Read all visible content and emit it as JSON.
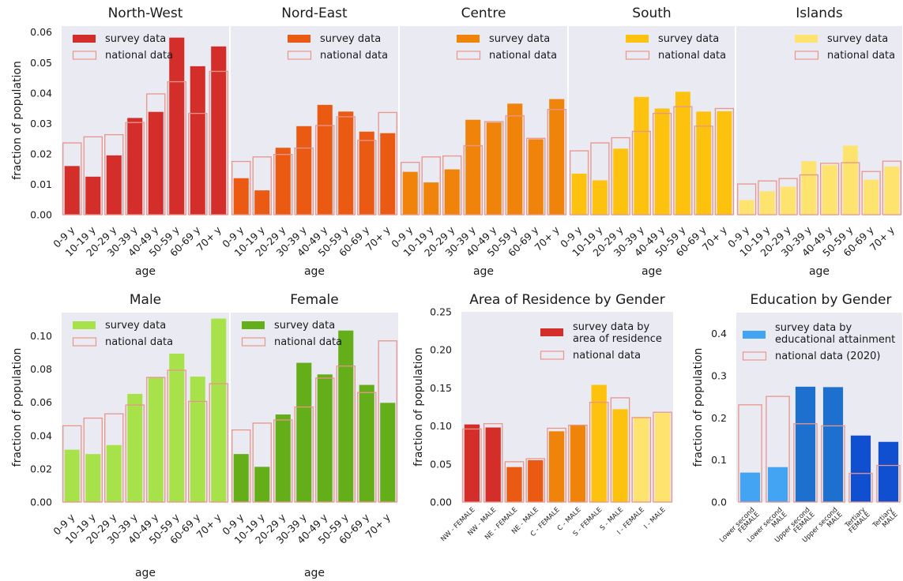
{
  "colors": {
    "panel_bg": "#EAEAF2",
    "national_edge": "#E8958C",
    "north_west": "#D42E2A",
    "nord_east": "#EB5A13",
    "centre": "#F0830A",
    "south": "#FCC20E",
    "islands": "#FEE46E",
    "male": "#A8E24A",
    "female": "#63AE19",
    "edu_light": "#44A4F4",
    "edu_mid": "#1E70CE",
    "edu_dark": "#0F4FD0"
  },
  "labels": {
    "age": "age",
    "fraction": "fraction of population",
    "survey": "survey data",
    "national": "national data",
    "survey_area": "survey data by area of residence",
    "survey_area_l1": "survey data by",
    "survey_area_l2": "area of residence",
    "survey_edu_l1": "survey data by",
    "survey_edu_l2": "educational attainment",
    "national_2020": "national data (2020)"
  },
  "chart_data": [
    {
      "type": "bar",
      "title": "North-West",
      "categories": [
        "0-9 y",
        "10-19 y",
        "20-29 y",
        "30-39 y",
        "40-49 y",
        "50-59 y",
        "60-69 y",
        "70+ y"
      ],
      "series": [
        {
          "name": "survey data",
          "values": [
            0.016,
            0.0125,
            0.0195,
            0.0318,
            0.0338,
            0.0582,
            0.0488,
            0.0553
          ]
        },
        {
          "name": "national data",
          "values": [
            0.0236,
            0.0256,
            0.0263,
            0.0303,
            0.0397,
            0.0437,
            0.0333,
            0.0471
          ]
        }
      ],
      "xlabel": "age",
      "ylabel": "fraction of population",
      "ylim": [
        0,
        0.062
      ],
      "yticks": [
        "0.00",
        "0.01",
        "0.02",
        "0.03",
        "0.04",
        "0.05",
        "0.06"
      ]
    },
    {
      "type": "bar",
      "title": "Nord-East",
      "categories": [
        "0-9 y",
        "10-19 y",
        "20-29 y",
        "30-39 y",
        "40-49 y",
        "50-59 y",
        "60-69 y",
        "70+ y"
      ],
      "series": [
        {
          "name": "survey data",
          "values": [
            0.012,
            0.008,
            0.022,
            0.0291,
            0.0361,
            0.0339,
            0.0273,
            0.0268
          ]
        },
        {
          "name": "national data",
          "values": [
            0.0175,
            0.019,
            0.0198,
            0.0219,
            0.0293,
            0.0322,
            0.0244,
            0.0336
          ]
        }
      ],
      "xlabel": "age",
      "ylim": [
        0,
        0.062
      ]
    },
    {
      "type": "bar",
      "title": "Centre",
      "categories": [
        "0-9 y",
        "10-19 y",
        "20-29 y",
        "30-39 y",
        "40-49 y",
        "50-59 y",
        "60-69 y",
        "70+ y"
      ],
      "series": [
        {
          "name": "survey data",
          "values": [
            0.0141,
            0.0106,
            0.0149,
            0.0312,
            0.0303,
            0.0365,
            0.0248,
            0.038
          ]
        },
        {
          "name": "national data",
          "values": [
            0.0172,
            0.019,
            0.0193,
            0.0227,
            0.0306,
            0.0325,
            0.0251,
            0.0346
          ]
        }
      ],
      "xlabel": "age",
      "ylim": [
        0,
        0.062
      ]
    },
    {
      "type": "bar",
      "title": "South",
      "categories": [
        "0-9 y",
        "10-19 y",
        "20-29 y",
        "30-39 y",
        "40-49 y",
        "50-59 y",
        "60-69 y",
        "70+ y"
      ],
      "series": [
        {
          "name": "survey data",
          "values": [
            0.0135,
            0.0113,
            0.0217,
            0.0387,
            0.0349,
            0.0404,
            0.0339,
            0.034
          ]
        },
        {
          "name": "national data",
          "values": [
            0.021,
            0.0236,
            0.0253,
            0.0274,
            0.0333,
            0.0355,
            0.0291,
            0.0349
          ]
        }
      ],
      "xlabel": "age",
      "ylim": [
        0,
        0.062
      ]
    },
    {
      "type": "bar",
      "title": "Islands",
      "categories": [
        "0-9 y",
        "10-19 y",
        "20-29 y",
        "30-39 y",
        "40-49 y",
        "50-59 y",
        "60-69 y",
        "70+ y"
      ],
      "series": [
        {
          "name": "survey data",
          "values": [
            0.0048,
            0.0077,
            0.0092,
            0.0176,
            0.0163,
            0.0227,
            0.0115,
            0.0158
          ]
        },
        {
          "name": "national data",
          "values": [
            0.0101,
            0.0111,
            0.0119,
            0.0131,
            0.0169,
            0.0171,
            0.0142,
            0.0176
          ]
        }
      ],
      "xlabel": "age",
      "ylim": [
        0,
        0.062
      ]
    },
    {
      "type": "bar",
      "title": "Male",
      "categories": [
        "0-9 y",
        "10-19 y",
        "20-29 y",
        "30-39 y",
        "40-49 y",
        "50-59 y",
        "60-69 y",
        "70+ y"
      ],
      "series": [
        {
          "name": "survey data",
          "values": [
            0.0315,
            0.0289,
            0.0343,
            0.0651,
            0.0748,
            0.0893,
            0.0755,
            0.1104
          ]
        },
        {
          "name": "national data",
          "values": [
            0.0459,
            0.0505,
            0.0531,
            0.0584,
            0.075,
            0.0793,
            0.0606,
            0.0712
          ]
        }
      ],
      "xlabel": "age",
      "ylabel": "fraction of population",
      "ylim": [
        0,
        0.114
      ],
      "yticks": [
        "0.00",
        "0.02",
        "0.04",
        "0.06",
        "0.08",
        "0.10"
      ]
    },
    {
      "type": "bar",
      "title": "Female",
      "categories": [
        "0-9 y",
        "10-19 y",
        "20-29 y",
        "30-39 y",
        "40-49 y",
        "50-59 y",
        "60-69 y",
        "70+ y"
      ],
      "series": [
        {
          "name": "survey data",
          "values": [
            0.0289,
            0.0212,
            0.0527,
            0.0838,
            0.0768,
            0.1032,
            0.0705,
            0.0597
          ]
        },
        {
          "name": "national data",
          "values": [
            0.0434,
            0.0475,
            0.0494,
            0.0572,
            0.0746,
            0.0818,
            0.0659,
            0.097
          ]
        }
      ],
      "xlabel": "age",
      "ylim": [
        0,
        0.114
      ]
    },
    {
      "type": "bar",
      "title": "Area of Residence by Gender",
      "categories": [
        "NW - FEMALE",
        "NW - MALE",
        "NE - FEMALE",
        "NE - MALE",
        "C - FEMALE",
        "C - MALE",
        "S - FEMALE",
        "S - MALE",
        "I - FEMALE",
        "I - MALE"
      ],
      "series": [
        {
          "name": "survey data by area of residence",
          "values": [
            0.102,
            0.098,
            0.046,
            0.055,
            0.093,
            0.101,
            0.154,
            0.122,
            0.112,
            0.117
          ]
        },
        {
          "name": "national data",
          "values": [
            0.096,
            0.103,
            0.053,
            0.057,
            0.097,
            0.101,
            0.131,
            0.137,
            0.111,
            0.118
          ]
        }
      ],
      "ylabel": "fraction of population",
      "ylim": [
        0,
        0.25
      ],
      "yticks": [
        "0.00",
        "0.05",
        "0.10",
        "0.15",
        "0.20",
        "0.25"
      ]
    },
    {
      "type": "bar",
      "title": "Education by Gender",
      "categories": [
        [
          "Lower second",
          "FEMALE"
        ],
        [
          "Lower second",
          "MALE"
        ],
        [
          "Upper second",
          "FEMALE"
        ],
        [
          "Upper second",
          "MALE"
        ],
        [
          "Tertiary",
          "FEMALE"
        ],
        [
          "Tertiary",
          "MALE"
        ]
      ],
      "series": [
        {
          "name": "survey data by educational attainment",
          "values": [
            0.07,
            0.083,
            0.274,
            0.273,
            0.158,
            0.143
          ]
        },
        {
          "name": "national data (2020)",
          "values": [
            0.231,
            0.251,
            0.186,
            0.181,
            0.068,
            0.087
          ]
        }
      ],
      "ylabel": "fraction of population",
      "ylim": [
        0,
        0.45
      ],
      "yticks": [
        "0.0",
        "0.1",
        "0.2",
        "0.3",
        "0.4"
      ]
    }
  ]
}
